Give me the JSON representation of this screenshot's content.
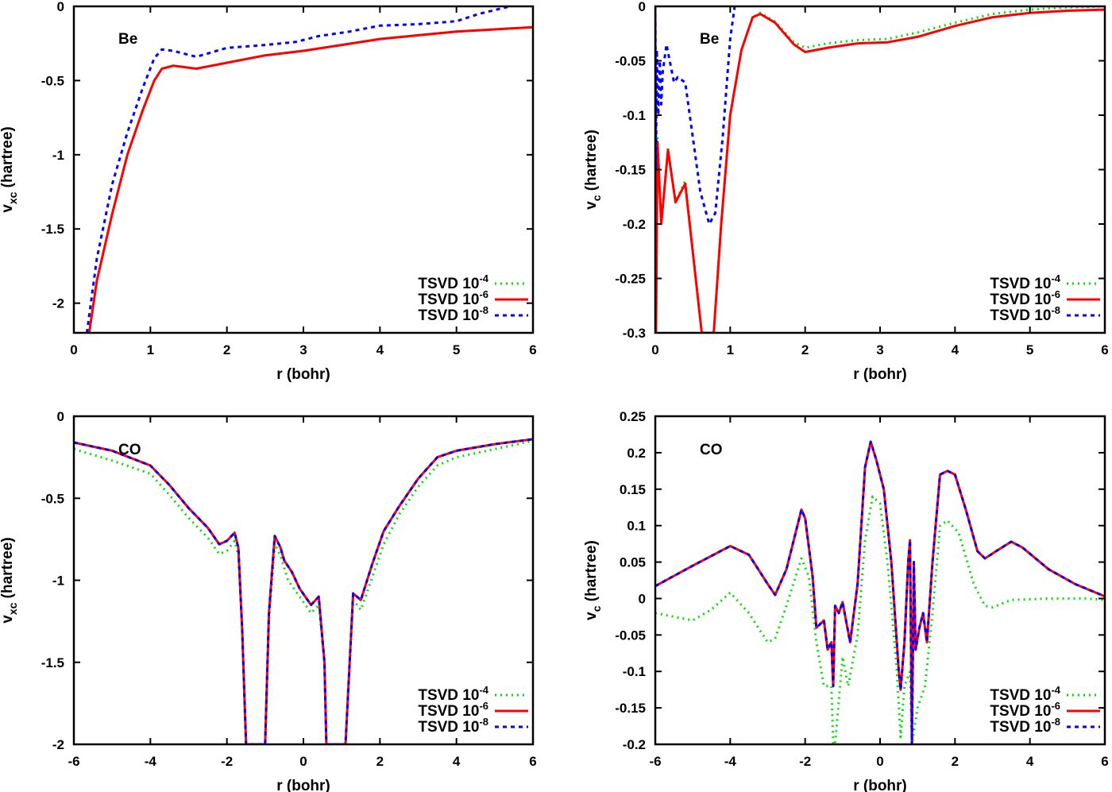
{
  "colors": {
    "tsvd_1e-4": "#00e000",
    "tsvd_1e-6": "#ff0000",
    "tsvd_1e-8": "#0000ff"
  },
  "chart_data": [
    {
      "type": "line",
      "annotation": "Be",
      "xlabel": "r (bohr)",
      "ylabel": "v_xc (hartree)",
      "ylabel_main": "v",
      "ylabel_sub": "xc",
      "ylabel_rest": " (hartree)",
      "xlim": [
        0,
        6
      ],
      "ylim": [
        -2.2,
        0
      ],
      "xticks": [
        0,
        1,
        2,
        3,
        4,
        5,
        6
      ],
      "yticks": [
        0,
        -0.5,
        -1,
        -1.5,
        -2
      ],
      "legend": "bottom-right",
      "grid": false,
      "series": [
        {
          "name": "TSVD 10^-4",
          "base": "TSVD 10",
          "exp": "-4",
          "style": "dotted",
          "x": [
            0.2,
            0.3,
            0.5,
            0.7,
            0.9,
            1.05,
            1.15,
            1.3,
            1.6,
            2,
            2.5,
            3,
            3.5,
            4,
            4.5,
            5,
            5.5,
            6
          ],
          "y": [
            -2.2,
            -1.85,
            -1.4,
            -1.0,
            -0.7,
            -0.5,
            -0.42,
            -0.4,
            -0.42,
            -0.38,
            -0.33,
            -0.3,
            -0.26,
            -0.22,
            -0.195,
            -0.17,
            -0.155,
            -0.14
          ]
        },
        {
          "name": "TSVD 10^-6",
          "base": "TSVD 10",
          "exp": "-6",
          "style": "solid",
          "x": [
            0.2,
            0.3,
            0.5,
            0.7,
            0.9,
            1.05,
            1.15,
            1.3,
            1.6,
            2,
            2.5,
            3,
            3.5,
            4,
            4.5,
            5,
            5.5,
            6
          ],
          "y": [
            -2.2,
            -1.85,
            -1.4,
            -1.0,
            -0.7,
            -0.5,
            -0.42,
            -0.4,
            -0.42,
            -0.38,
            -0.33,
            -0.3,
            -0.26,
            -0.22,
            -0.195,
            -0.17,
            -0.155,
            -0.14
          ]
        },
        {
          "name": "TSVD 10^-8",
          "base": "TSVD 10",
          "exp": "-8",
          "style": "dashed",
          "x": [
            0.17,
            0.3,
            0.5,
            0.7,
            0.9,
            1.05,
            1.15,
            1.3,
            1.6,
            2,
            2.5,
            2.9,
            3.2,
            3.6,
            4,
            4.5,
            5,
            5.3,
            5.7
          ],
          "y": [
            -2.2,
            -1.7,
            -1.2,
            -0.85,
            -0.55,
            -0.35,
            -0.29,
            -0.3,
            -0.34,
            -0.28,
            -0.26,
            -0.24,
            -0.2,
            -0.17,
            -0.13,
            -0.12,
            -0.1,
            -0.05,
            0
          ]
        }
      ]
    },
    {
      "type": "line",
      "annotation": "Be",
      "xlabel": "r (bohr)",
      "ylabel": "v_c (hartree)",
      "ylabel_main": "v",
      "ylabel_sub": "c",
      "ylabel_rest": " (hartree)",
      "xlim": [
        0,
        6
      ],
      "ylim": [
        -0.3,
        0
      ],
      "xticks": [
        0,
        1,
        2,
        3,
        4,
        5,
        6
      ],
      "yticks": [
        0,
        -0.05,
        -0.1,
        -0.15,
        -0.2,
        -0.25,
        -0.3
      ],
      "legend": "bottom-right",
      "grid": false,
      "series": [
        {
          "name": "TSVD 10^-4",
          "base": "TSVD 10",
          "exp": "-4",
          "style": "dotted",
          "x": [
            0,
            0.01,
            0.03,
            0.08,
            0.17,
            0.27,
            0.4,
            0.62,
            0.78,
            0.88,
            1.0,
            1.15,
            1.3,
            1.4,
            1.6,
            1.85,
            2.0,
            2.3,
            2.7,
            3.1,
            3.5,
            4,
            4.5,
            5,
            5.5,
            6
          ],
          "y": [
            0,
            -0.3,
            -0.12,
            -0.2,
            -0.13,
            -0.18,
            -0.16,
            -0.3,
            -0.3,
            -0.2,
            -0.1,
            -0.04,
            -0.01,
            -0.006,
            -0.014,
            -0.033,
            -0.038,
            -0.034,
            -0.031,
            -0.03,
            -0.024,
            -0.015,
            -0.007,
            -0.003,
            -0.001,
            0
          ]
        },
        {
          "name": "TSVD 10^-6",
          "base": "TSVD 10",
          "exp": "-6",
          "style": "solid",
          "x": [
            0,
            0.01,
            0.03,
            0.08,
            0.17,
            0.27,
            0.4,
            0.62,
            0.78,
            0.88,
            1.0,
            1.15,
            1.3,
            1.4,
            1.6,
            1.85,
            2.0,
            2.3,
            2.7,
            3.1,
            3.5,
            4,
            4.5,
            5,
            5.5,
            6
          ],
          "y": [
            0,
            -0.3,
            -0.125,
            -0.2,
            -0.132,
            -0.18,
            -0.163,
            -0.3,
            -0.3,
            -0.2,
            -0.1,
            -0.04,
            -0.01,
            -0.007,
            -0.015,
            -0.035,
            -0.042,
            -0.038,
            -0.034,
            -0.033,
            -0.028,
            -0.018,
            -0.01,
            -0.006,
            -0.004,
            -0.003
          ]
        },
        {
          "name": "TSVD 10^-8",
          "base": "TSVD 10",
          "exp": "-8",
          "style": "dashed",
          "x": [
            0,
            0.01,
            0.02,
            0.04,
            0.06,
            0.08,
            0.1,
            0.15,
            0.25,
            0.3,
            0.4,
            0.5,
            0.6,
            0.72,
            0.8,
            0.9,
            1.0,
            1.06
          ],
          "y": [
            0,
            -0.15,
            -0.04,
            -0.1,
            -0.05,
            -0.09,
            -0.06,
            -0.035,
            -0.07,
            -0.065,
            -0.07,
            -0.12,
            -0.17,
            -0.2,
            -0.19,
            -0.12,
            -0.03,
            0
          ]
        }
      ]
    },
    {
      "type": "line",
      "annotation": "CO",
      "xlabel": "r (bohr)",
      "ylabel": "v_xc (hartree)",
      "ylabel_main": "v",
      "ylabel_sub": "xc",
      "ylabel_rest": " (hartree)",
      "xlim": [
        -6,
        6
      ],
      "ylim": [
        -2,
        0
      ],
      "xticks": [
        -6,
        -4,
        -2,
        0,
        2,
        4,
        6
      ],
      "yticks": [
        0,
        -0.5,
        -1,
        -1.5,
        -2
      ],
      "legend": "bottom-right",
      "grid": false,
      "series": [
        {
          "name": "TSVD 10^-4",
          "base": "TSVD 10",
          "exp": "-4",
          "style": "dotted",
          "x": [
            -6,
            -5,
            -4,
            -3.5,
            -3,
            -2.5,
            -2.2,
            -2,
            -1.8,
            -1.7,
            -1.6,
            -1.5,
            -1.0,
            -0.9,
            -0.75,
            -0.6,
            -0.4,
            -0.1,
            0.2,
            0.4,
            0.55,
            0.6,
            1.1,
            1.3,
            1.5,
            1.8,
            2.1,
            2.5,
            3,
            3.5,
            4,
            5,
            6
          ],
          "y": [
            -0.2,
            -0.27,
            -0.35,
            -0.48,
            -0.62,
            -0.74,
            -0.84,
            -0.82,
            -0.76,
            -0.85,
            -1.3,
            -2,
            -2,
            -1.25,
            -0.78,
            -0.85,
            -1.0,
            -1.1,
            -1.2,
            -1.15,
            -1.5,
            -2,
            -2,
            -1.12,
            -1.18,
            -0.98,
            -0.78,
            -0.6,
            -0.43,
            -0.3,
            -0.25,
            -0.2,
            -0.15
          ]
        },
        {
          "name": "TSVD 10^-6",
          "base": "TSVD 10",
          "exp": "-6",
          "style": "solid",
          "x": [
            -6,
            -5,
            -4,
            -3.5,
            -3,
            -2.5,
            -2.2,
            -2,
            -1.8,
            -1.7,
            -1.6,
            -1.5,
            -1.0,
            -0.9,
            -0.75,
            -0.6,
            -0.5,
            -0.3,
            -0.1,
            0.2,
            0.4,
            0.55,
            0.6,
            1.1,
            1.3,
            1.5,
            1.8,
            2.1,
            2.5,
            3,
            3.5,
            4,
            5,
            6
          ],
          "y": [
            -0.16,
            -0.21,
            -0.3,
            -0.42,
            -0.56,
            -0.68,
            -0.78,
            -0.76,
            -0.71,
            -0.8,
            -1.3,
            -2,
            -2,
            -1.2,
            -0.73,
            -0.8,
            -0.88,
            -0.95,
            -1.05,
            -1.15,
            -1.1,
            -1.5,
            -2,
            -2,
            -1.08,
            -1.12,
            -0.9,
            -0.7,
            -0.55,
            -0.38,
            -0.25,
            -0.21,
            -0.17,
            -0.14
          ]
        },
        {
          "name": "TSVD 10^-8",
          "base": "TSVD 10",
          "exp": "-8",
          "style": "dashed",
          "x": [
            -6,
            -5,
            -4,
            -3.5,
            -3,
            -2.5,
            -2.2,
            -2,
            -1.8,
            -1.7,
            -1.6,
            -1.5,
            -1.0,
            -0.9,
            -0.75,
            -0.6,
            -0.5,
            -0.3,
            -0.1,
            0.2,
            0.4,
            0.55,
            0.6,
            1.1,
            1.3,
            1.5,
            1.8,
            2.1,
            2.5,
            3,
            3.5,
            4,
            5,
            6
          ],
          "y": [
            -0.16,
            -0.21,
            -0.3,
            -0.42,
            -0.56,
            -0.68,
            -0.78,
            -0.76,
            -0.71,
            -0.8,
            -1.3,
            -2,
            -2,
            -1.2,
            -0.73,
            -0.8,
            -0.88,
            -0.95,
            -1.05,
            -1.15,
            -1.1,
            -1.5,
            -2,
            -2,
            -1.08,
            -1.12,
            -0.9,
            -0.7,
            -0.55,
            -0.38,
            -0.25,
            -0.21,
            -0.17,
            -0.14
          ]
        }
      ]
    },
    {
      "type": "line",
      "annotation": "CO",
      "xlabel": "r (bohr)",
      "ylabel": "v_c (hartree)",
      "ylabel_main": "v",
      "ylabel_sub": "c",
      "ylabel_rest": " (hartree)",
      "xlim": [
        -6,
        6
      ],
      "ylim": [
        -0.2,
        0.25
      ],
      "xticks": [
        -6,
        -4,
        -2,
        0,
        2,
        4,
        6
      ],
      "yticks": [
        0.25,
        0.2,
        0.15,
        0.1,
        0.05,
        0,
        -0.05,
        -0.1,
        -0.15,
        -0.2
      ],
      "legend": "bottom-right",
      "grid": false,
      "series": [
        {
          "name": "TSVD 10^-4",
          "base": "TSVD 10",
          "exp": "-4",
          "style": "dotted",
          "x": [
            -6,
            -5,
            -4.5,
            -4,
            -3.5,
            -3,
            -2.8,
            -2.5,
            -2.1,
            -1.9,
            -1.7,
            -1.5,
            -1.3,
            -1.25,
            -1.2,
            -1.0,
            -0.85,
            -0.6,
            -0.4,
            -0.2,
            0,
            0.2,
            0.45,
            0.55,
            0.65,
            0.8,
            0.85,
            1.0,
            1.2,
            1.4,
            1.6,
            1.8,
            2.1,
            2.5,
            2.8,
            3,
            3.5,
            4.5,
            5.5,
            6
          ],
          "y": [
            -0.02,
            -0.03,
            -0.015,
            0.008,
            -0.02,
            -0.06,
            -0.055,
            -0.01,
            0.055,
            0.03,
            -0.06,
            -0.12,
            -0.12,
            -0.2,
            -0.2,
            -0.08,
            -0.12,
            -0.05,
            0.08,
            0.14,
            0.13,
            0.05,
            -0.1,
            -0.19,
            -0.12,
            -0.1,
            -0.2,
            -0.15,
            -0.12,
            -0.02,
            0.1,
            0.107,
            0.09,
            0.02,
            -0.01,
            -0.012,
            -0.002,
            0,
            0,
            -0.002
          ]
        },
        {
          "name": "TSVD 10^-6",
          "base": "TSVD 10",
          "exp": "-6",
          "style": "solid",
          "x": [
            -6,
            -5,
            -4,
            -3.5,
            -3,
            -2.8,
            -2.5,
            -2.1,
            -2,
            -1.8,
            -1.7,
            -1.5,
            -1.4,
            -1.3,
            -1.25,
            -1.2,
            -1.1,
            -1.0,
            -0.8,
            -0.6,
            -0.4,
            -0.25,
            -0.1,
            0.1,
            0.3,
            0.5,
            0.55,
            0.65,
            0.75,
            0.8,
            0.85,
            0.9,
            0.95,
            1.05,
            1.15,
            1.25,
            1.4,
            1.6,
            1.8,
            2.0,
            2.3,
            2.6,
            2.8,
            3.1,
            3.5,
            3.8,
            4.5,
            5.2,
            6
          ],
          "y": [
            0.017,
            0.045,
            0.072,
            0.06,
            0.02,
            0.005,
            0.04,
            0.122,
            0.11,
            0.03,
            -0.04,
            -0.03,
            -0.07,
            -0.06,
            -0.12,
            -0.01,
            -0.02,
            -0.005,
            -0.06,
            0.02,
            0.18,
            0.215,
            0.19,
            0.15,
            0.05,
            -0.1,
            -0.125,
            -0.06,
            0.05,
            0.08,
            -0.2,
            0.05,
            -0.07,
            -0.04,
            -0.02,
            -0.06,
            0.05,
            0.17,
            0.175,
            0.17,
            0.12,
            0.065,
            0.055,
            0.065,
            0.078,
            0.07,
            0.04,
            0.02,
            0.003
          ]
        },
        {
          "name": "TSVD 10^-8",
          "base": "TSVD 10",
          "exp": "-8",
          "style": "dashed",
          "x": [
            -6,
            -5,
            -4,
            -3.5,
            -3,
            -2.8,
            -2.5,
            -2.1,
            -2,
            -1.8,
            -1.7,
            -1.5,
            -1.4,
            -1.3,
            -1.25,
            -1.2,
            -1.1,
            -1.0,
            -0.8,
            -0.6,
            -0.4,
            -0.25,
            -0.1,
            0.1,
            0.3,
            0.5,
            0.55,
            0.65,
            0.75,
            0.8,
            0.85,
            0.9,
            0.95,
            1.05,
            1.15,
            1.25,
            1.4,
            1.6,
            1.8,
            2.0,
            2.3,
            2.6,
            2.8,
            3.1,
            3.5,
            3.8,
            4.5,
            5.2,
            6
          ],
          "y": [
            0.017,
            0.045,
            0.072,
            0.06,
            0.02,
            0.005,
            0.04,
            0.122,
            0.11,
            0.03,
            -0.04,
            -0.03,
            -0.07,
            -0.06,
            -0.12,
            -0.01,
            -0.02,
            -0.005,
            -0.06,
            0.02,
            0.18,
            0.215,
            0.19,
            0.15,
            0.05,
            -0.1,
            -0.125,
            -0.06,
            0.05,
            0.08,
            -0.2,
            0.05,
            -0.07,
            -0.04,
            -0.02,
            -0.06,
            0.05,
            0.17,
            0.175,
            0.17,
            0.12,
            0.065,
            0.055,
            0.065,
            0.078,
            0.07,
            0.04,
            0.02,
            0.003
          ]
        }
      ]
    }
  ]
}
